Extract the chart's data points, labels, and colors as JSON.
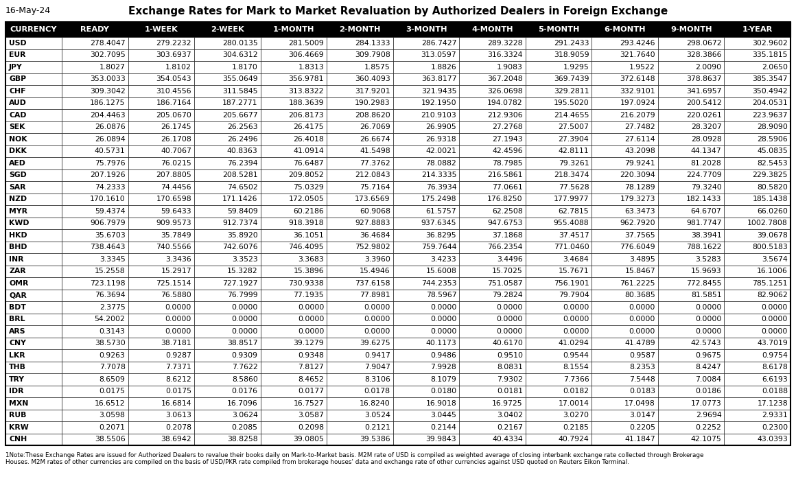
{
  "date": "16-May-24",
  "title": "Exchange Rates for Mark to Market Revaluation by Authorized Dealers in Foreign Exchange",
  "headers": [
    "CURRENCY",
    "READY",
    "1-WEEK",
    "2-WEEK",
    "1-MONTH",
    "2-MONTH",
    "3-MONTH",
    "4-MONTH",
    "5-MONTH",
    "6-MONTH",
    "9-MONTH",
    "1-YEAR"
  ],
  "rows": [
    [
      "USD",
      "278.4047",
      "279.2232",
      "280.0135",
      "281.5009",
      "284.1333",
      "286.7427",
      "289.3228",
      "291.2433",
      "293.4246",
      "298.0672",
      "302.9602"
    ],
    [
      "EUR",
      "302.7095",
      "303.6937",
      "304.6312",
      "306.4669",
      "309.7908",
      "313.0597",
      "316.3324",
      "318.9059",
      "321.7640",
      "328.3866",
      "335.1815"
    ],
    [
      "JPY",
      "1.8027",
      "1.8102",
      "1.8170",
      "1.8313",
      "1.8575",
      "1.8826",
      "1.9083",
      "1.9295",
      "1.9522",
      "2.0090",
      "2.0650"
    ],
    [
      "GBP",
      "353.0033",
      "354.0543",
      "355.0649",
      "356.9781",
      "360.4093",
      "363.8177",
      "367.2048",
      "369.7439",
      "372.6148",
      "378.8637",
      "385.3547"
    ],
    [
      "CHF",
      "309.3042",
      "310.4556",
      "311.5845",
      "313.8322",
      "317.9201",
      "321.9435",
      "326.0698",
      "329.2811",
      "332.9101",
      "341.6957",
      "350.4942"
    ],
    [
      "AUD",
      "186.1275",
      "186.7164",
      "187.2771",
      "188.3639",
      "190.2983",
      "192.1950",
      "194.0782",
      "195.5020",
      "197.0924",
      "200.5412",
      "204.0531"
    ],
    [
      "CAD",
      "204.4463",
      "205.0670",
      "205.6677",
      "206.8173",
      "208.8620",
      "210.9103",
      "212.9306",
      "214.4655",
      "216.2079",
      "220.0261",
      "223.9637"
    ],
    [
      "SEK",
      "26.0876",
      "26.1745",
      "26.2563",
      "26.4175",
      "26.7069",
      "26.9905",
      "27.2768",
      "27.5007",
      "27.7482",
      "28.3207",
      "28.9090"
    ],
    [
      "NOK",
      "26.0894",
      "26.1708",
      "26.2496",
      "26.4018",
      "26.6674",
      "26.9318",
      "27.1943",
      "27.3904",
      "27.6114",
      "28.0928",
      "28.5906"
    ],
    [
      "DKK",
      "40.5731",
      "40.7067",
      "40.8363",
      "41.0914",
      "41.5498",
      "42.0021",
      "42.4596",
      "42.8111",
      "43.2098",
      "44.1347",
      "45.0835"
    ],
    [
      "AED",
      "75.7976",
      "76.0215",
      "76.2394",
      "76.6487",
      "77.3762",
      "78.0882",
      "78.7985",
      "79.3261",
      "79.9241",
      "81.2028",
      "82.5453"
    ],
    [
      "SGD",
      "207.1926",
      "207.8805",
      "208.5281",
      "209.8052",
      "212.0843",
      "214.3335",
      "216.5861",
      "218.3474",
      "220.3094",
      "224.7709",
      "229.3825"
    ],
    [
      "SAR",
      "74.2333",
      "74.4456",
      "74.6502",
      "75.0329",
      "75.7164",
      "76.3934",
      "77.0661",
      "77.5628",
      "78.1289",
      "79.3240",
      "80.5820"
    ],
    [
      "NZD",
      "170.1610",
      "170.6598",
      "171.1426",
      "172.0505",
      "173.6569",
      "175.2498",
      "176.8250",
      "177.9977",
      "179.3273",
      "182.1433",
      "185.1438"
    ],
    [
      "MYR",
      "59.4374",
      "59.6433",
      "59.8409",
      "60.2186",
      "60.9068",
      "61.5757",
      "62.2508",
      "62.7815",
      "63.3473",
      "64.6707",
      "66.0260"
    ],
    [
      "KWD",
      "906.7979",
      "909.9573",
      "912.7374",
      "918.3918",
      "927.8883",
      "937.6345",
      "947.6753",
      "955.4088",
      "962.7920",
      "981.7747",
      "1002.7808"
    ],
    [
      "HKD",
      "35.6703",
      "35.7849",
      "35.8920",
      "36.1051",
      "36.4684",
      "36.8295",
      "37.1868",
      "37.4517",
      "37.7565",
      "38.3941",
      "39.0678"
    ],
    [
      "BHD",
      "738.4643",
      "740.5566",
      "742.6076",
      "746.4095",
      "752.9802",
      "759.7644",
      "766.2354",
      "771.0460",
      "776.6049",
      "788.1622",
      "800.5183"
    ],
    [
      "INR",
      "3.3345",
      "3.3436",
      "3.3523",
      "3.3683",
      "3.3960",
      "3.4233",
      "3.4496",
      "3.4684",
      "3.4895",
      "3.5283",
      "3.5674"
    ],
    [
      "ZAR",
      "15.2558",
      "15.2917",
      "15.3282",
      "15.3896",
      "15.4946",
      "15.6008",
      "15.7025",
      "15.7671",
      "15.8467",
      "15.9693",
      "16.1006"
    ],
    [
      "OMR",
      "723.1198",
      "725.1514",
      "727.1927",
      "730.9338",
      "737.6158",
      "744.2353",
      "751.0587",
      "756.1901",
      "761.2225",
      "772.8455",
      "785.1251"
    ],
    [
      "QAR",
      "76.3694",
      "76.5880",
      "76.7999",
      "77.1935",
      "77.8981",
      "78.5967",
      "79.2824",
      "79.7904",
      "80.3685",
      "81.5851",
      "82.9062"
    ],
    [
      "BDT",
      "2.3775",
      "0.0000",
      "0.0000",
      "0.0000",
      "0.0000",
      "0.0000",
      "0.0000",
      "0.0000",
      "0.0000",
      "0.0000",
      "0.0000"
    ],
    [
      "BRL",
      "54.2002",
      "0.0000",
      "0.0000",
      "0.0000",
      "0.0000",
      "0.0000",
      "0.0000",
      "0.0000",
      "0.0000",
      "0.0000",
      "0.0000"
    ],
    [
      "ARS",
      "0.3143",
      "0.0000",
      "0.0000",
      "0.0000",
      "0.0000",
      "0.0000",
      "0.0000",
      "0.0000",
      "0.0000",
      "0.0000",
      "0.0000"
    ],
    [
      "CNY",
      "38.5730",
      "38.7181",
      "38.8517",
      "39.1279",
      "39.6275",
      "40.1173",
      "40.6170",
      "41.0294",
      "41.4789",
      "42.5743",
      "43.7019"
    ],
    [
      "LKR",
      "0.9263",
      "0.9287",
      "0.9309",
      "0.9348",
      "0.9417",
      "0.9486",
      "0.9510",
      "0.9544",
      "0.9587",
      "0.9675",
      "0.9754"
    ],
    [
      "THB",
      "7.7078",
      "7.7371",
      "7.7622",
      "7.8127",
      "7.9047",
      "7.9928",
      "8.0831",
      "8.1554",
      "8.2353",
      "8.4247",
      "8.6178"
    ],
    [
      "TRY",
      "8.6509",
      "8.6212",
      "8.5860",
      "8.4652",
      "8.3106",
      "8.1079",
      "7.9302",
      "7.7366",
      "7.5448",
      "7.0084",
      "6.6193"
    ],
    [
      "IDR",
      "0.0175",
      "0.0175",
      "0.0176",
      "0.0177",
      "0.0178",
      "0.0180",
      "0.0181",
      "0.0182",
      "0.0183",
      "0.0186",
      "0.0188"
    ],
    [
      "MXN",
      "16.6512",
      "16.6814",
      "16.7096",
      "16.7527",
      "16.8240",
      "16.9018",
      "16.9725",
      "17.0014",
      "17.0498",
      "17.0773",
      "17.1238"
    ],
    [
      "RUB",
      "3.0598",
      "3.0613",
      "3.0624",
      "3.0587",
      "3.0524",
      "3.0445",
      "3.0402",
      "3.0270",
      "3.0147",
      "2.9694",
      "2.9331"
    ],
    [
      "KRW",
      "0.2071",
      "0.2078",
      "0.2085",
      "0.2098",
      "0.2121",
      "0.2144",
      "0.2167",
      "0.2185",
      "0.2205",
      "0.2252",
      "0.2300"
    ],
    [
      "CNH",
      "38.5506",
      "38.6942",
      "38.8258",
      "39.0805",
      "39.5386",
      "39.9843",
      "40.4334",
      "40.7924",
      "41.1847",
      "42.1075",
      "43.0393"
    ]
  ],
  "footnote_line1": "1Note:These Exchange Rates are issued for Authorized Dealers to revalue their books daily on Mark-to-Market basis. M2M rate of USD is compiled as weighted average of closing interbank exchange rate collected through Brokerage",
  "footnote_line2": "Houses. M2M rates of other currencies are compiled on the basis of USD/PKR rate compiled from brokerage houses' data and exchange rate of other currencies against USD quoted on Reuters Eikon Terminal.",
  "header_bg": "#000000",
  "header_fg": "#ffffff",
  "border_color": "#000000",
  "font_size_data": 7.8,
  "font_size_header": 8.2,
  "font_size_title": 11.0,
  "font_size_date": 9.0,
  "font_size_footnote": 6.3
}
